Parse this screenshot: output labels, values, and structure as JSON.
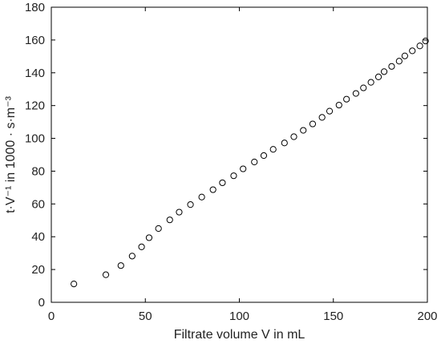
{
  "chart_data": {
    "type": "scatter",
    "title": "",
    "xlabel": "Filtrate volume V in mL",
    "ylabel": "t·V⁻¹ in 1000 · s·m⁻³",
    "xlim": [
      0,
      200
    ],
    "ylim": [
      0,
      180
    ],
    "xticks": [
      0,
      50,
      100,
      150,
      200
    ],
    "yticks": [
      0,
      20,
      40,
      60,
      80,
      100,
      120,
      140,
      160,
      180
    ],
    "grid": false,
    "legend": "none",
    "marker": "open-circle",
    "colors": {
      "axis": "#000000",
      "marker": "#000000",
      "background": "#ffffff"
    },
    "series": [
      {
        "x": [
          12,
          29,
          37,
          43,
          48,
          52,
          57,
          63,
          68,
          74,
          80,
          86,
          91,
          97,
          102,
          108,
          113,
          118,
          124,
          129,
          134,
          139,
          144,
          148,
          153,
          157,
          162,
          166,
          170,
          174,
          177,
          181,
          185,
          188,
          192,
          196,
          199
        ],
        "y": [
          11.2,
          16.8,
          22.4,
          28.2,
          33.8,
          39.4,
          45.0,
          50.3,
          55.0,
          59.6,
          64.2,
          68.7,
          72.9,
          77.2,
          81.4,
          85.6,
          89.5,
          93.3,
          97.2,
          101.0,
          104.9,
          108.8,
          112.8,
          116.6,
          120.3,
          123.9,
          127.4,
          130.8,
          134.2,
          137.5,
          140.7,
          143.9,
          147.1,
          150.3,
          153.4,
          156.4,
          159.4
        ]
      }
    ]
  }
}
